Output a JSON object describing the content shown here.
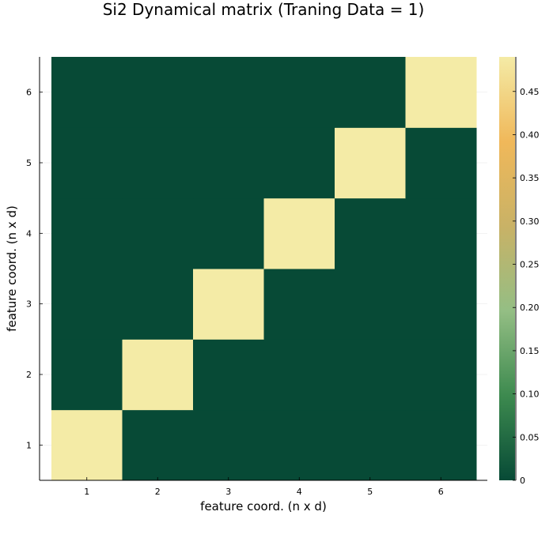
{
  "chart_data": {
    "type": "heatmap",
    "title": "Si2 Dynamical matrix (Traning Data = 1)",
    "xlabel": "feature coord. (n x d)",
    "ylabel": "feature coord. (n x d)",
    "x_ticks": [
      "1",
      "2",
      "3",
      "4",
      "5",
      "6"
    ],
    "y_ticks": [
      "1",
      "2",
      "3",
      "4",
      "5",
      "6"
    ],
    "xlim": [
      0.5,
      6.5
    ],
    "ylim": [
      0.5,
      6.5
    ],
    "grid": true,
    "matrix": [
      [
        0.49,
        0,
        0,
        0,
        0,
        0
      ],
      [
        0,
        0.49,
        0,
        0,
        0,
        0
      ],
      [
        0,
        0,
        0.49,
        0,
        0,
        0
      ],
      [
        0,
        0,
        0,
        0.49,
        0,
        0
      ],
      [
        0,
        0,
        0,
        0,
        0.49,
        0
      ],
      [
        0,
        0,
        0,
        0,
        0,
        0.49
      ]
    ],
    "colorbar": {
      "min": 0,
      "max": 0.49,
      "ticks": [
        0,
        0.05,
        0.1,
        0.15,
        0.2,
        0.25,
        0.3,
        0.35,
        0.4,
        0.45
      ],
      "tick_labels": [
        "0",
        "0.05",
        "0.10",
        "0.15",
        "0.20",
        "0.25",
        "0.30",
        "0.35",
        "0.40",
        "0.45"
      ],
      "colors": [
        "#074a36",
        "#3d8a4f",
        "#94be84",
        "#c9b266",
        "#f0b85a",
        "#f4eba6"
      ]
    }
  }
}
